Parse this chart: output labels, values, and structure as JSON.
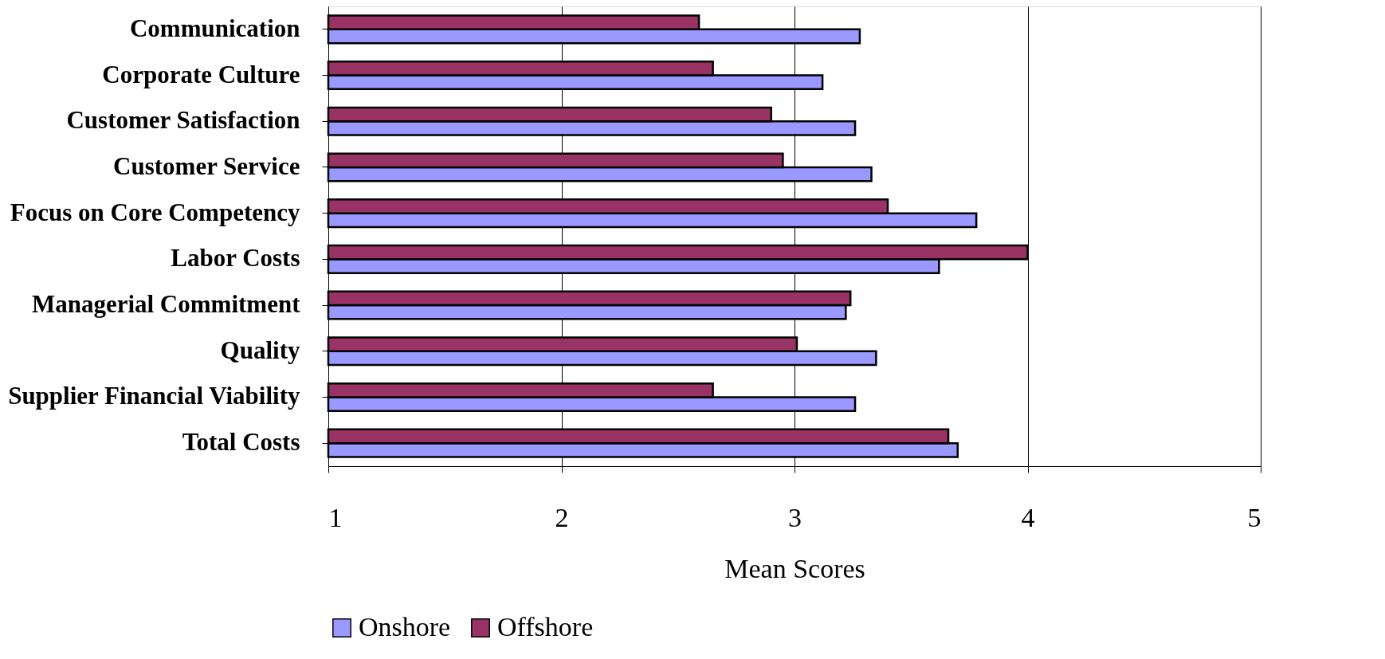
{
  "chart_data": {
    "type": "bar",
    "orientation": "horizontal",
    "xlabel": "Mean Scores",
    "categories": [
      "Communication",
      "Corporate Culture",
      "Customer Satisfaction",
      "Customer Service",
      "Focus on Core Competency",
      "Labor Costs",
      "Managerial Commitment",
      "Quality",
      "Supplier Financial Viability",
      "Total Costs"
    ],
    "series": [
      {
        "name": "Onshore",
        "color": "#9999ff",
        "values": [
          3.28,
          3.12,
          3.26,
          3.33,
          3.78,
          3.62,
          3.22,
          3.35,
          3.26,
          3.7
        ]
      },
      {
        "name": "Offshore",
        "color": "#993366",
        "values": [
          2.59,
          2.65,
          2.9,
          2.95,
          3.4,
          4.0,
          3.24,
          3.01,
          2.65,
          3.66
        ]
      }
    ],
    "xlim": [
      1,
      5
    ],
    "xticks": [
      1,
      2,
      3,
      4,
      5
    ],
    "grid": "x",
    "legend": "bottom"
  }
}
